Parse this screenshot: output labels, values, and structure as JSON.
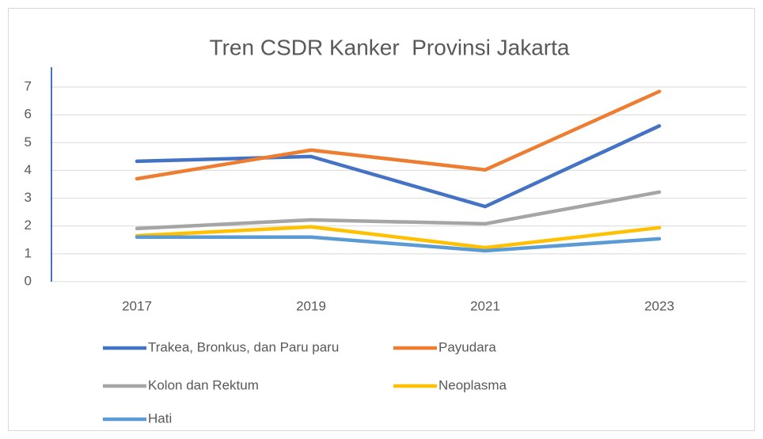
{
  "chart_data": {
    "type": "line",
    "title": "Tren CSDR Kanker  Provinsi Jakarta",
    "categories": [
      "2017",
      "2019",
      "2021",
      "2023"
    ],
    "series": [
      {
        "name": "Trakea, Bronkus, dan Paru paru",
        "color": "#4472c4",
        "values": [
          4.33,
          4.5,
          2.7,
          5.6
        ]
      },
      {
        "name": "Payudara",
        "color": "#ed7d31",
        "values": [
          3.7,
          4.73,
          4.02,
          6.84
        ]
      },
      {
        "name": "Kolon dan Rektum",
        "color": "#a5a5a5",
        "values": [
          1.91,
          2.22,
          2.08,
          3.22
        ]
      },
      {
        "name": "Neoplasma",
        "color": "#ffc000",
        "values": [
          1.65,
          1.97,
          1.22,
          1.94
        ]
      },
      {
        "name": "Hati",
        "color": "#5b9bd5",
        "values": [
          1.6,
          1.6,
          1.11,
          1.54
        ]
      }
    ],
    "ylim": [
      0,
      7
    ],
    "yticks": [
      0,
      1,
      2,
      3,
      4,
      5,
      6,
      7
    ],
    "grid": true
  }
}
